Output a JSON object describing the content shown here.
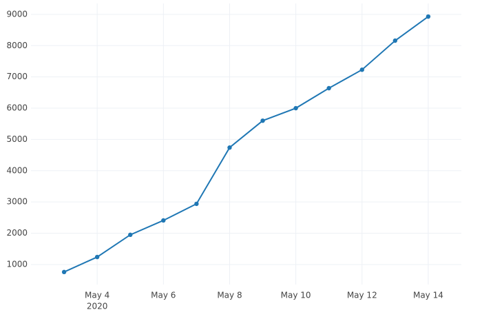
{
  "chart_data": {
    "type": "line",
    "x": [
      "2020-05-03",
      "2020-05-04",
      "2020-05-05",
      "2020-05-06",
      "2020-05-07",
      "2020-05-08",
      "2020-05-09",
      "2020-05-10",
      "2020-05-11",
      "2020-05-12",
      "2020-05-13",
      "2020-05-14"
    ],
    "series": [
      {
        "color": "#1f77b4",
        "values": [
          760,
          1240,
          1950,
          2410,
          2940,
          4740,
          5600,
          6000,
          6640,
          7230,
          8160,
          8930
        ]
      }
    ],
    "xlim": [
      "2020-05-02",
      "2020-05-15"
    ],
    "xticks": [
      {
        "value": "2020-05-04",
        "label": "May 4"
      },
      {
        "value": "2020-05-06",
        "label": "May 6"
      },
      {
        "value": "2020-05-08",
        "label": "May 8"
      },
      {
        "value": "2020-05-10",
        "label": "May 10"
      },
      {
        "value": "2020-05-12",
        "label": "May 12"
      },
      {
        "value": "2020-05-14",
        "label": "May 14"
      }
    ],
    "x_year_label": "2020",
    "ylim": [
      360,
      9350
    ],
    "yticks": [
      1000,
      2000,
      3000,
      4000,
      5000,
      6000,
      7000,
      8000,
      9000
    ],
    "grid": true
  }
}
